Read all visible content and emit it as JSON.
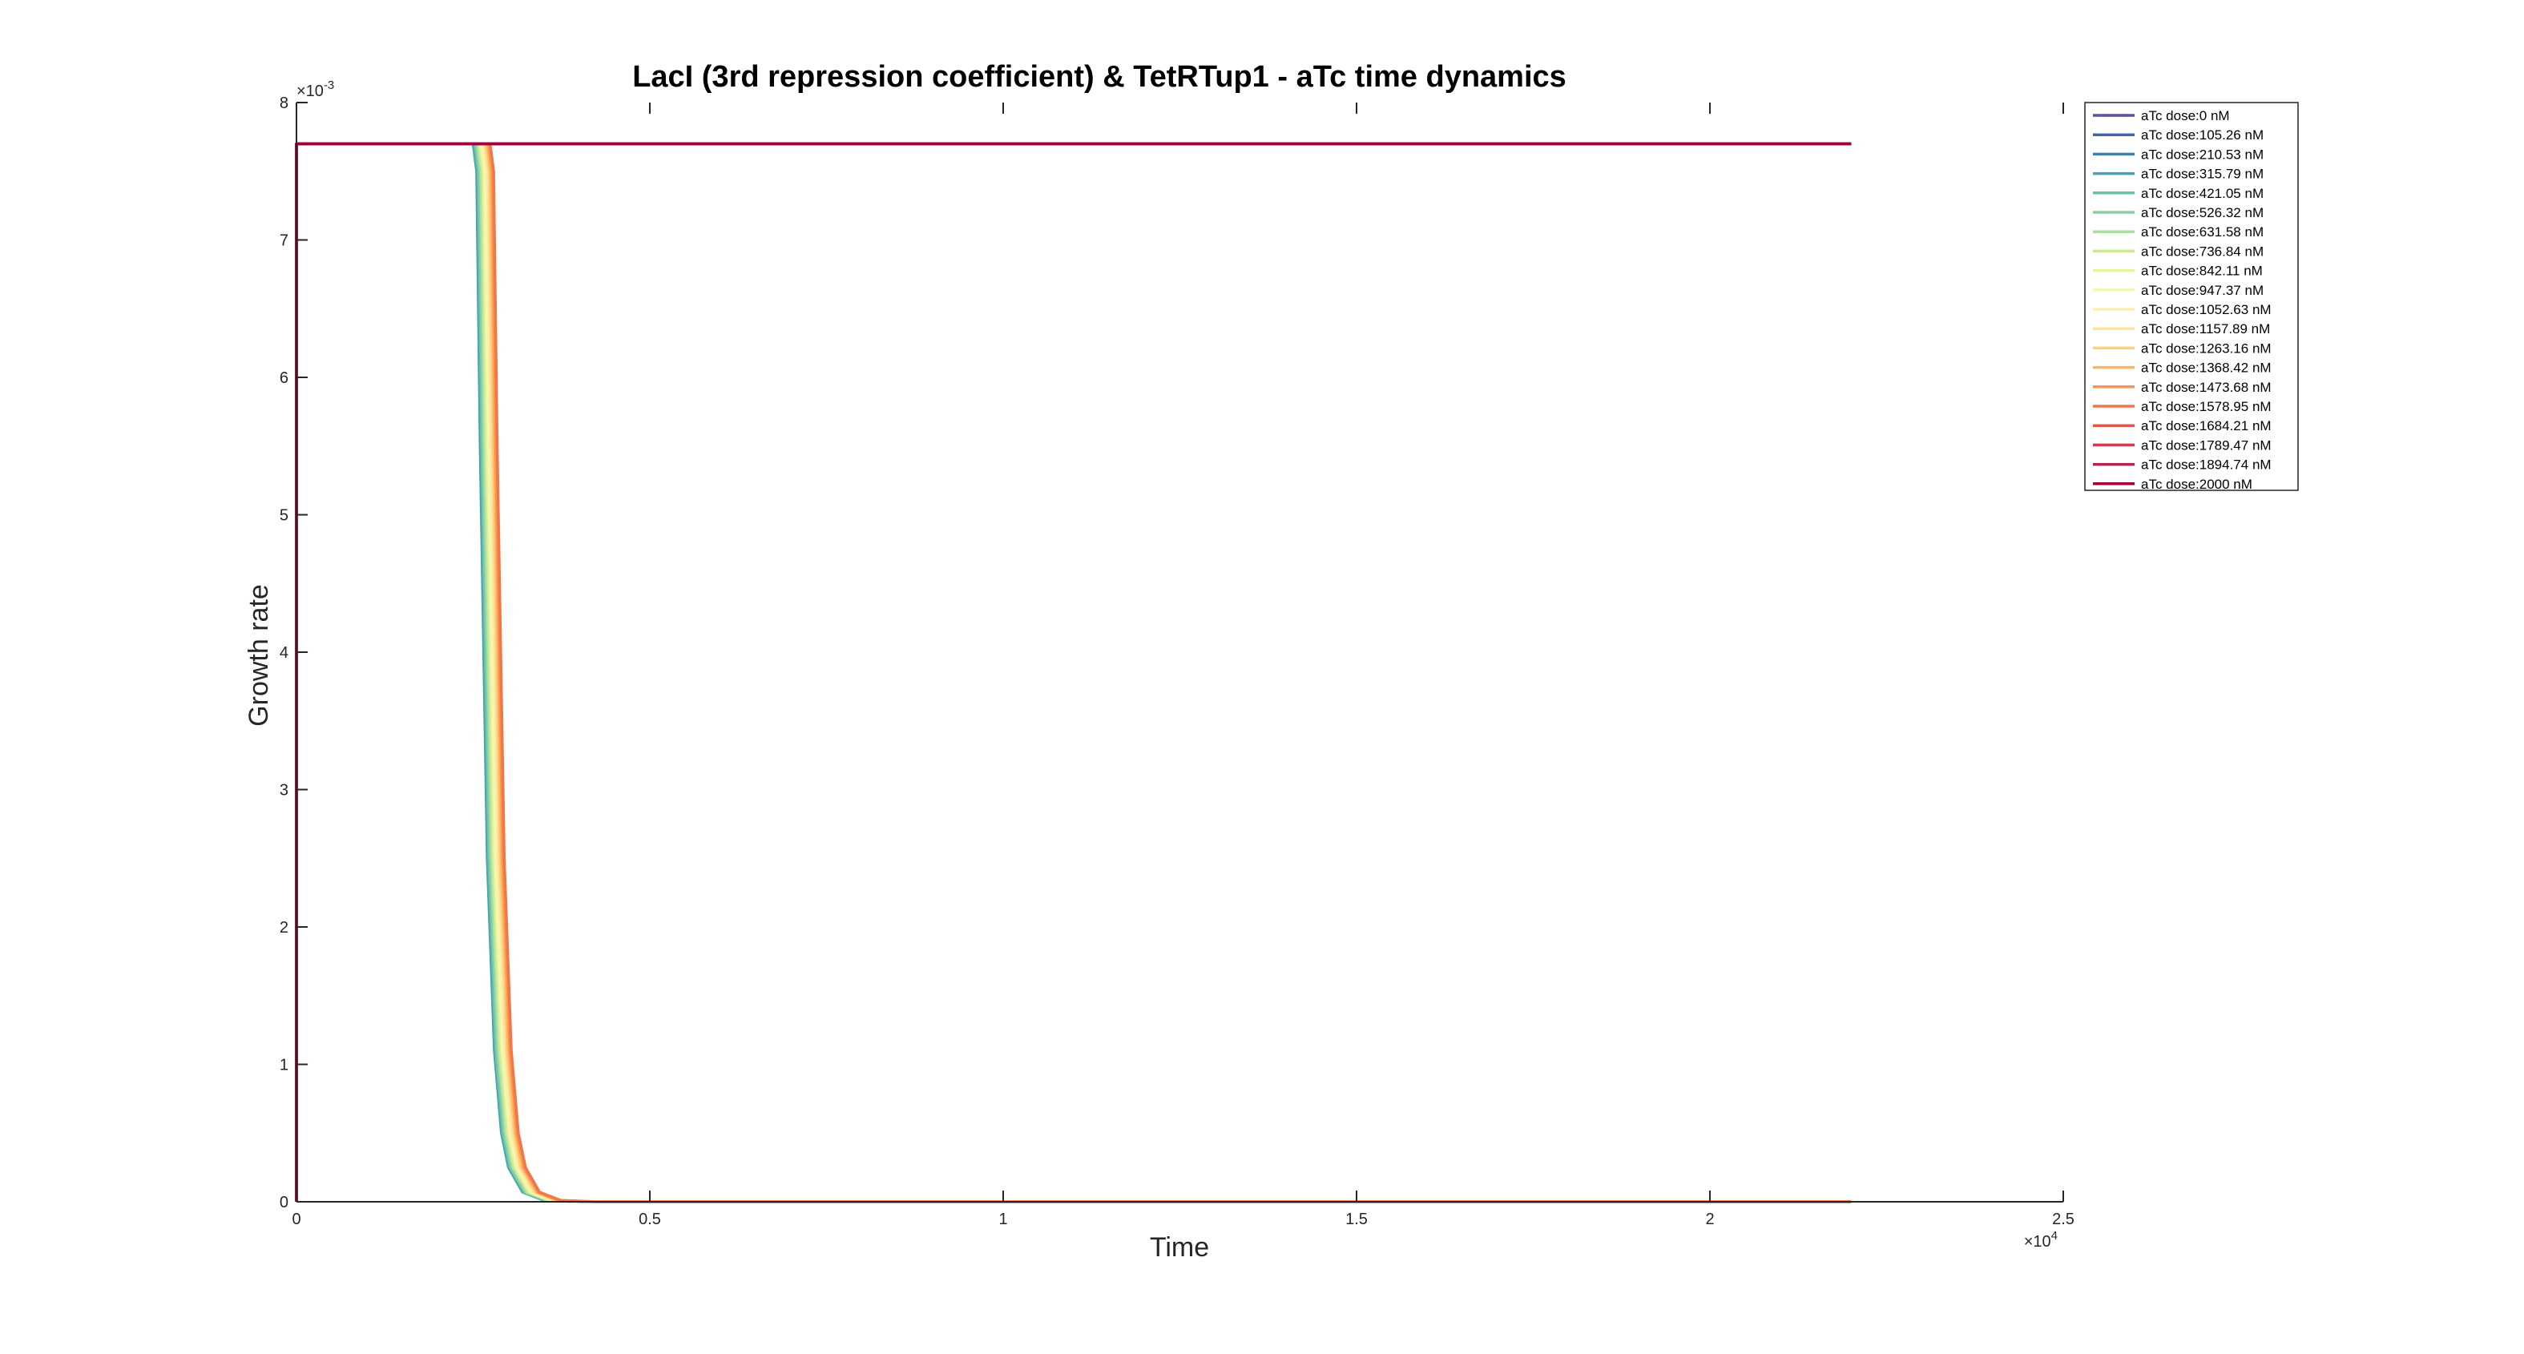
{
  "chart_data": {
    "type": "line",
    "title": "LacI (3rd repression coefficient) & TetRTup1 - aTc time dynamics",
    "xlabel": "Time",
    "ylabel": "Growth rate",
    "x_exponent_label": "×10",
    "x_exponent_power": "4",
    "y_exponent_label": "×10",
    "y_exponent_power": "-3",
    "xlim": [
      0,
      25000
    ],
    "ylim": [
      0,
      0.008
    ],
    "xticks": [
      0,
      5000,
      10000,
      15000,
      20000,
      25000
    ],
    "xtick_labels": [
      "0",
      "0.5",
      "1",
      "1.5",
      "2",
      "2.5"
    ],
    "yticks": [
      0,
      0.001,
      0.002,
      0.003,
      0.004,
      0.005,
      0.006,
      0.007,
      0.008
    ],
    "ytick_labels": [
      "0",
      "1",
      "2",
      "3",
      "4",
      "5",
      "6",
      "7",
      "8"
    ],
    "grid": false,
    "legend_position": "top-right outside",
    "t_end": 22000,
    "plateau": 0.0077,
    "series": [
      {
        "name": "aTc dose:0 nM",
        "color": "#5e4fa2",
        "x": [
          0,
          22000
        ],
        "y": [
          0.0077,
          0.0077
        ]
      },
      {
        "name": "aTc dose:105.26 nM",
        "color": "#4065b0",
        "x": [
          0,
          22000
        ],
        "y": [
          0.0077,
          0.0077
        ]
      },
      {
        "name": "aTc dose:210.53 nM",
        "color": "#2f87bb",
        "x": [
          0,
          22000
        ],
        "y": [
          0.0077,
          0.0077
        ]
      },
      {
        "name": "aTc dose:315.79 nM",
        "color": "#45a3b2",
        "x": [
          0,
          2500,
          2550,
          2600,
          2700,
          2800,
          2900,
          3000,
          3200,
          3500,
          4000,
          22000
        ],
        "y": [
          0.0077,
          0.0077,
          0.0075,
          0.0055,
          0.0025,
          0.0011,
          0.0005,
          0.00025,
          7e-05,
          1e-05,
          0.0,
          0.0
        ]
      },
      {
        "name": "aTc dose:421.05 nM",
        "color": "#66c2a5",
        "x": [
          0,
          2520,
          2570,
          2620,
          2720,
          2820,
          2920,
          3020,
          3220,
          3520,
          4020,
          22000
        ],
        "y": [
          0.0077,
          0.0077,
          0.0075,
          0.0055,
          0.0025,
          0.0011,
          0.0005,
          0.00025,
          7e-05,
          1e-05,
          0.0,
          0.0
        ]
      },
      {
        "name": "aTc dose:526.32 nM",
        "color": "#8acfa4",
        "x": [
          0,
          2540,
          2590,
          2640,
          2740,
          2840,
          2940,
          3040,
          3240,
          3540,
          4040,
          22000
        ],
        "y": [
          0.0077,
          0.0077,
          0.0075,
          0.0055,
          0.0025,
          0.0011,
          0.0005,
          0.00025,
          7e-05,
          1e-05,
          0.0,
          0.0
        ]
      },
      {
        "name": "aTc dose:631.58 nM",
        "color": "#abdda4",
        "x": [
          0,
          2560,
          2610,
          2660,
          2760,
          2860,
          2960,
          3060,
          3260,
          3560,
          4060,
          22000
        ],
        "y": [
          0.0077,
          0.0077,
          0.0075,
          0.0055,
          0.0025,
          0.0011,
          0.0005,
          0.00025,
          7e-05,
          1e-05,
          0.0,
          0.0
        ]
      },
      {
        "name": "aTc dose:736.84 nM",
        "color": "#cbe99d",
        "x": [
          0,
          2580,
          2630,
          2680,
          2780,
          2880,
          2980,
          3080,
          3280,
          3580,
          4080,
          22000
        ],
        "y": [
          0.0077,
          0.0077,
          0.0075,
          0.0055,
          0.0025,
          0.0011,
          0.0005,
          0.00025,
          7e-05,
          1e-05,
          0.0,
          0.0
        ]
      },
      {
        "name": "aTc dose:842.11 nM",
        "color": "#e6f598",
        "x": [
          0,
          2600,
          2650,
          2700,
          2800,
          2900,
          3000,
          3100,
          3300,
          3600,
          4100,
          22000
        ],
        "y": [
          0.0077,
          0.0077,
          0.0075,
          0.0055,
          0.0025,
          0.0011,
          0.0005,
          0.00025,
          7e-05,
          1e-05,
          0.0,
          0.0
        ]
      },
      {
        "name": "aTc dose:947.37 nM",
        "color": "#f3f9b0",
        "x": [
          0,
          2620,
          2670,
          2720,
          2820,
          2920,
          3020,
          3120,
          3320,
          3620,
          4120,
          22000
        ],
        "y": [
          0.0077,
          0.0077,
          0.0075,
          0.0055,
          0.0025,
          0.0011,
          0.0005,
          0.00025,
          7e-05,
          1e-05,
          0.0,
          0.0
        ]
      },
      {
        "name": "aTc dose:1052.63 nM",
        "color": "#fbf0b0",
        "x": [
          0,
          2640,
          2690,
          2740,
          2840,
          2940,
          3040,
          3140,
          3340,
          3640,
          4140,
          22000
        ],
        "y": [
          0.0077,
          0.0077,
          0.0075,
          0.0055,
          0.0025,
          0.0011,
          0.0005,
          0.00025,
          7e-05,
          1e-05,
          0.0,
          0.0
        ]
      },
      {
        "name": "aTc dose:1157.89 nM",
        "color": "#fee499",
        "x": [
          0,
          2660,
          2710,
          2760,
          2860,
          2960,
          3060,
          3160,
          3360,
          3660,
          4160,
          22000
        ],
        "y": [
          0.0077,
          0.0077,
          0.0075,
          0.0055,
          0.0025,
          0.0011,
          0.0005,
          0.00025,
          7e-05,
          1e-05,
          0.0,
          0.0
        ]
      },
      {
        "name": "aTc dose:1263.16 nM",
        "color": "#fed07a",
        "x": [
          0,
          2680,
          2730,
          2780,
          2880,
          2980,
          3080,
          3180,
          3380,
          3680,
          4180,
          22000
        ],
        "y": [
          0.0077,
          0.0077,
          0.0075,
          0.0055,
          0.0025,
          0.0011,
          0.0005,
          0.00025,
          7e-05,
          1e-05,
          0.0,
          0.0
        ]
      },
      {
        "name": "aTc dose:1368.42 nM",
        "color": "#fdb465",
        "x": [
          0,
          2700,
          2750,
          2800,
          2900,
          3000,
          3100,
          3200,
          3400,
          3700,
          4200,
          22000
        ],
        "y": [
          0.0077,
          0.0077,
          0.0075,
          0.0055,
          0.0025,
          0.0011,
          0.0005,
          0.00025,
          7e-05,
          1e-05,
          0.0,
          0.0
        ]
      },
      {
        "name": "aTc dose:1473.68 nM",
        "color": "#f99455",
        "x": [
          0,
          2720,
          2770,
          2820,
          2920,
          3020,
          3120,
          3220,
          3420,
          3720,
          4220,
          22000
        ],
        "y": [
          0.0077,
          0.0077,
          0.0075,
          0.0055,
          0.0025,
          0.0011,
          0.0005,
          0.00025,
          7e-05,
          1e-05,
          0.0,
          0.0
        ]
      },
      {
        "name": "aTc dose:1578.95 nM",
        "color": "#f07848",
        "x": [
          0,
          2740,
          2790,
          2840,
          2940,
          3040,
          3140,
          3240,
          3440,
          3740,
          4240,
          22000
        ],
        "y": [
          0.0077,
          0.0077,
          0.0075,
          0.0055,
          0.0025,
          0.0011,
          0.0005,
          0.00025,
          7e-05,
          1e-05,
          0.0,
          0.0
        ]
      },
      {
        "name": "aTc dose:1684.21 nM",
        "color": "#e0584a",
        "x": [
          0,
          22000
        ],
        "y": [
          0.0077,
          0.0077
        ]
      },
      {
        "name": "aTc dose:1789.47 nM",
        "color": "#cc3e4d",
        "x": [
          0,
          22000
        ],
        "y": [
          0.0077,
          0.0077
        ]
      },
      {
        "name": "aTc dose:1894.74 nM",
        "color": "#b0254d",
        "x": [
          0,
          22000
        ],
        "y": [
          0.0077,
          0.0077
        ]
      },
      {
        "name": "aTc dose:2000 nM",
        "color": "#9e0142",
        "x": [
          0,
          22000
        ],
        "y": [
          0.0077,
          0.0077
        ]
      }
    ]
  }
}
